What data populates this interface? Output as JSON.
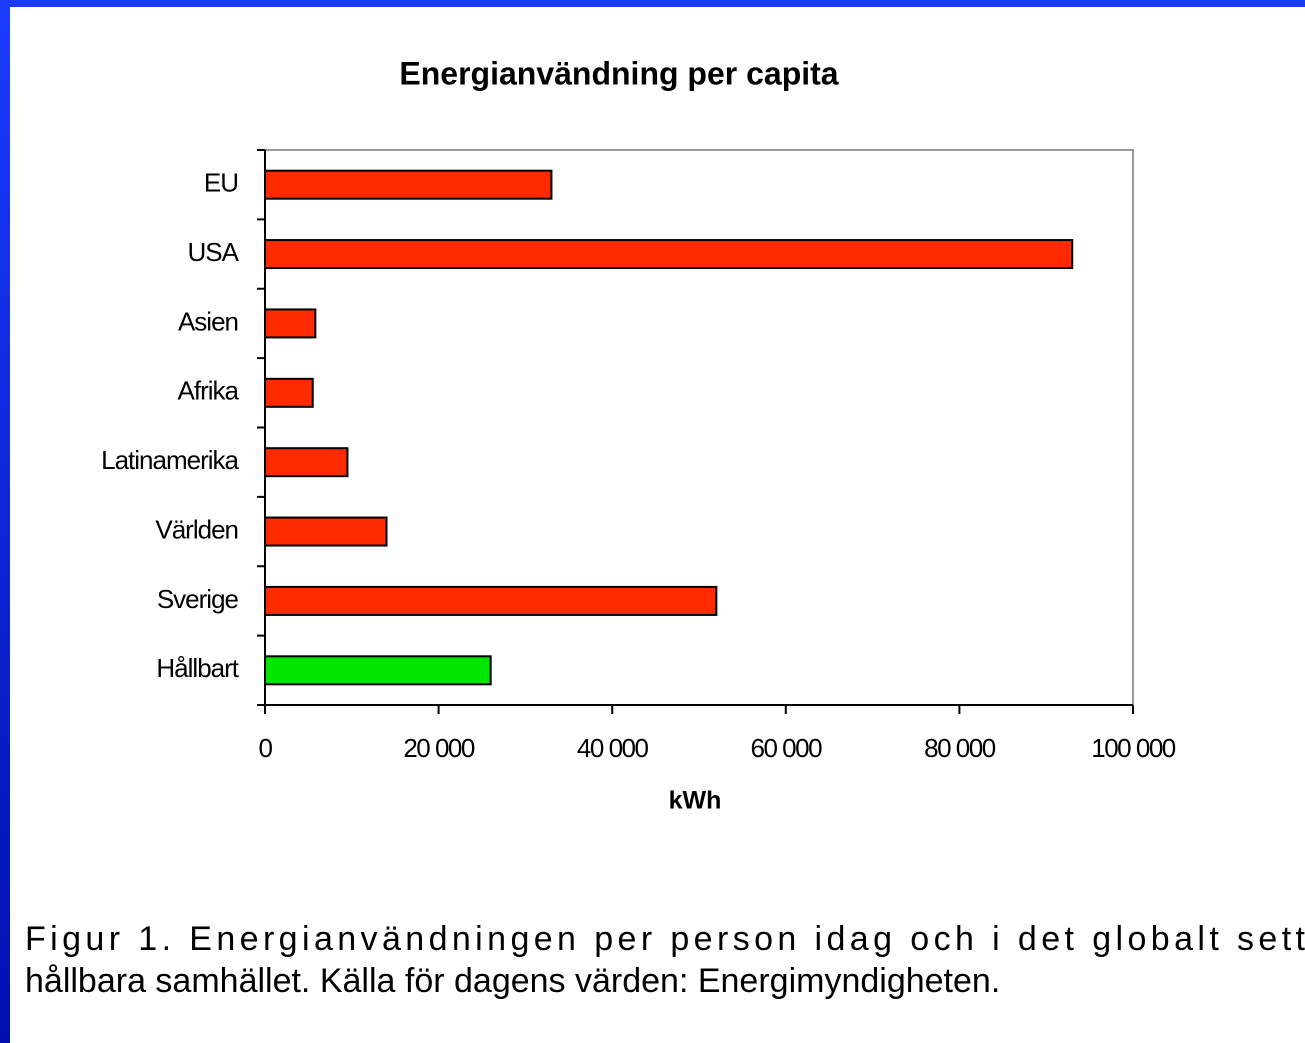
{
  "chart_data": {
    "type": "barh",
    "title": "Energianvändning per capita",
    "categories": [
      "EU",
      "USA",
      "Asien",
      "Afrika",
      "Latinamerika",
      "Världen",
      "Sverige",
      "Hållbart"
    ],
    "values": [
      33000,
      93000,
      5800,
      5500,
      9500,
      14000,
      52000,
      26000
    ],
    "colors": [
      "#ff2a00",
      "#ff2a00",
      "#ff2a00",
      "#ff2a00",
      "#ff2a00",
      "#ff2a00",
      "#ff2a00",
      "#00e600"
    ],
    "xlabel": "kWh",
    "xlim": [
      0,
      100000
    ],
    "xticks": [
      0,
      {
        "value": 20000,
        "label": "20 000"
      },
      {
        "value": 40000,
        "label": "40 000"
      },
      {
        "value": 60000,
        "label": "60 000"
      },
      {
        "value": 80000,
        "label": "80 000"
      },
      {
        "value": 100000,
        "label": "100 000"
      }
    ],
    "grid": false,
    "caption": [
      "Figur 1. Energianvändningen per person idag och i det globalt sett",
      "hållbara samhället. Källa för dagens värden: Energimyndigheten."
    ]
  }
}
